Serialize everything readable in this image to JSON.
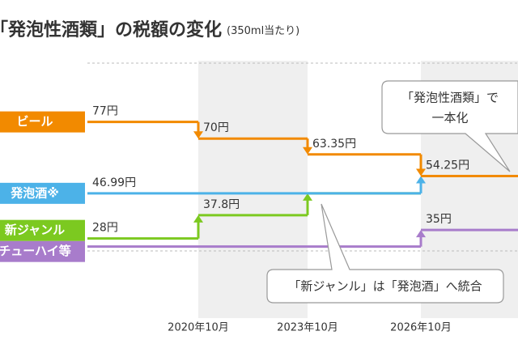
{
  "chart_data": {
    "type": "step",
    "title": "「発泡性酒類」の税額の変化",
    "subtitle": "(350ml当たり)",
    "categories": [
      null,
      "2020年10月",
      "2023年10月",
      "2026年10月"
    ],
    "ylim": [
      0,
      100
    ],
    "series": [
      {
        "name": "ビール",
        "color": "#f28a00",
        "values": [
          77,
          70,
          63.35,
          54.25
        ],
        "value_labels": [
          "77円",
          "70円",
          "63.35円",
          "54.25円"
        ]
      },
      {
        "name": "発泡酒※",
        "color": "#4cb2e8",
        "values": [
          46.99,
          46.99,
          46.99,
          54.25
        ],
        "value_labels": [
          "46.99円",
          null,
          null,
          null
        ]
      },
      {
        "name": "新ジャンル",
        "color": "#7cc920",
        "values": [
          28,
          37.8,
          46.99,
          null
        ],
        "value_labels": [
          "28円",
          "37.8円",
          null,
          null
        ]
      },
      {
        "name": "チューハイ等",
        "color": "#a87ccb",
        "values": [
          28,
          28,
          28,
          35
        ],
        "value_labels": [
          null,
          null,
          null,
          "35円"
        ]
      }
    ],
    "annotations": [
      [
        "「発泡性酒類」で",
        "一本化"
      ],
      [
        "「新ジャンル」は「発泡酒」へ統合"
      ]
    ]
  }
}
